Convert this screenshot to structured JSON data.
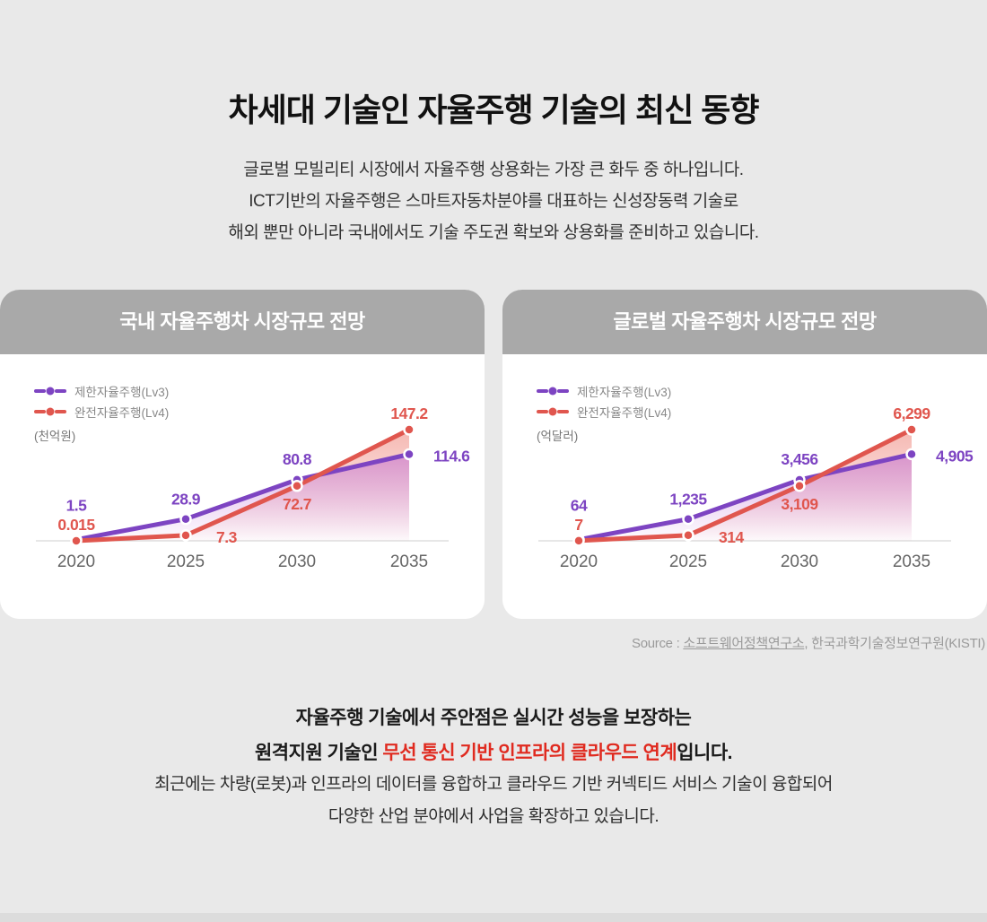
{
  "header": {
    "title": "차세대 기술인 자율주행 기술의 최신 동향",
    "subtitle_line1": "글로벌 모빌리티 시장에서 자율주행 상용화는 가장 큰 화두 중 하나입니다.",
    "subtitle_line2": "ICT기반의 자율주행은 스마트자동차분야를 대표하는 신성장동력 기술로",
    "subtitle_line3": "해외 뿐만 아니라 국내에서도 기술 주도권 확보와 상용화를 준비하고 있습니다."
  },
  "chart_data": [
    {
      "type": "line",
      "title": "국내 자율주행차 시장규모 전망",
      "unit": "(천억원)",
      "categories": [
        "2020",
        "2025",
        "2030",
        "2035"
      ],
      "series": [
        {
          "name": "제한자율주행(Lv3)",
          "color": "#7d44c2",
          "fill": "#bf6cd4",
          "values": [
            1.5,
            28.9,
            80.8,
            114.6
          ],
          "labels": [
            "1.5",
            "28.9",
            "80.8",
            "114.6"
          ]
        },
        {
          "name": "완전자율주행(Lv4)",
          "color": "#e0564e",
          "fill": "#ef897f",
          "values": [
            0.015,
            7.3,
            72.7,
            147.2
          ],
          "labels": [
            "0.015",
            "7.3",
            "72.7",
            "147.2"
          ]
        }
      ],
      "ylim": [
        0,
        147.2
      ],
      "grid": false,
      "legend_position": "top-left"
    },
    {
      "type": "line",
      "title": "글로벌 자율주행차 시장규모 전망",
      "unit": "(억달러)",
      "categories": [
        "2020",
        "2025",
        "2030",
        "2035"
      ],
      "series": [
        {
          "name": "제한자율주행(Lv3)",
          "color": "#7d44c2",
          "fill": "#bf6cd4",
          "values": [
            64,
            1235,
            3456,
            4905
          ],
          "labels": [
            "64",
            "1,235",
            "3,456",
            "4,905"
          ]
        },
        {
          "name": "완전자율주행(Lv4)",
          "color": "#e0564e",
          "fill": "#ef897f",
          "values": [
            7,
            314,
            3109,
            6299
          ],
          "labels": [
            "7",
            "314",
            "3,109",
            "6,299"
          ]
        }
      ],
      "ylim": [
        0,
        6299
      ],
      "grid": false,
      "legend_position": "top-left"
    }
  ],
  "source": {
    "prefix": "Source : ",
    "org1": "소프트웨어정책연구소",
    "separator": ", ",
    "org2": "한국과학기술정보연구원(KISTI)"
  },
  "footer": {
    "bold_line1": "자율주행 기술에서 주안점은 실시간 성능을 보장하는",
    "bold_line2_prefix": "원격지원 기술인 ",
    "bold_line2_highlight": "무선 통신 기반 인프라의 클라우드 연계",
    "bold_line2_suffix": "입니다.",
    "line3": "최근에는 차량(로봇)과 인프라의 데이터를 융합하고 클라우드 기반 커넥티드 서비스 기술이 융합되어",
    "line4": "다양한 산업 분야에서 사업을 확장하고 있습니다.",
    "highlight_color": "#e02a1f",
    "colors": {
      "purple": "#7d44c2",
      "red": "#e0564e",
      "card_header_bg": "#a9a9a9",
      "page_bg": "#e9e9e9"
    }
  }
}
